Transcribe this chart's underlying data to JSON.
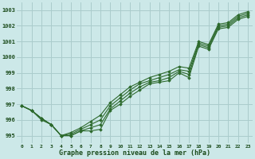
{
  "xlabel": "Graphe pression niveau de la mer (hPa)",
  "bg_color": "#cce8e8",
  "grid_color": "#aacccc",
  "line_color": "#2d6a2d",
  "xlim": [
    -0.5,
    23.5
  ],
  "ylim": [
    994.5,
    1003.5
  ],
  "yticks": [
    995,
    996,
    997,
    998,
    999,
    1000,
    1001,
    1002,
    1003
  ],
  "xticks": [
    0,
    1,
    2,
    3,
    4,
    5,
    6,
    7,
    8,
    9,
    10,
    11,
    12,
    13,
    14,
    15,
    16,
    17,
    18,
    19,
    20,
    21,
    22,
    23
  ],
  "series": [
    [
      996.9,
      996.6,
      996.0,
      995.7,
      995.0,
      995.0,
      995.3,
      995.3,
      995.4,
      996.6,
      997.0,
      997.5,
      997.9,
      998.3,
      998.4,
      998.5,
      999.0,
      998.7,
      1000.7,
      1000.5,
      1001.8,
      1001.9,
      1002.4,
      1002.6
    ],
    [
      996.9,
      996.6,
      996.1,
      995.7,
      995.0,
      995.0,
      995.3,
      995.5,
      995.7,
      996.7,
      997.2,
      997.7,
      998.1,
      998.4,
      998.5,
      998.7,
      999.1,
      998.9,
      1000.8,
      1000.6,
      1001.9,
      1002.0,
      1002.5,
      1002.7
    ],
    [
      996.9,
      996.6,
      996.1,
      995.7,
      995.0,
      995.1,
      995.4,
      995.7,
      996.0,
      996.9,
      997.4,
      997.9,
      998.3,
      998.5,
      998.7,
      998.9,
      999.2,
      999.1,
      1000.9,
      1000.7,
      1002.0,
      1002.1,
      1002.6,
      1002.8
    ],
    [
      996.9,
      996.6,
      996.1,
      995.7,
      995.0,
      995.2,
      995.5,
      995.9,
      996.3,
      997.1,
      997.6,
      998.1,
      998.4,
      998.7,
      998.9,
      999.1,
      999.4,
      999.3,
      1001.0,
      1000.8,
      1002.1,
      1002.2,
      1002.7,
      1002.9
    ]
  ]
}
